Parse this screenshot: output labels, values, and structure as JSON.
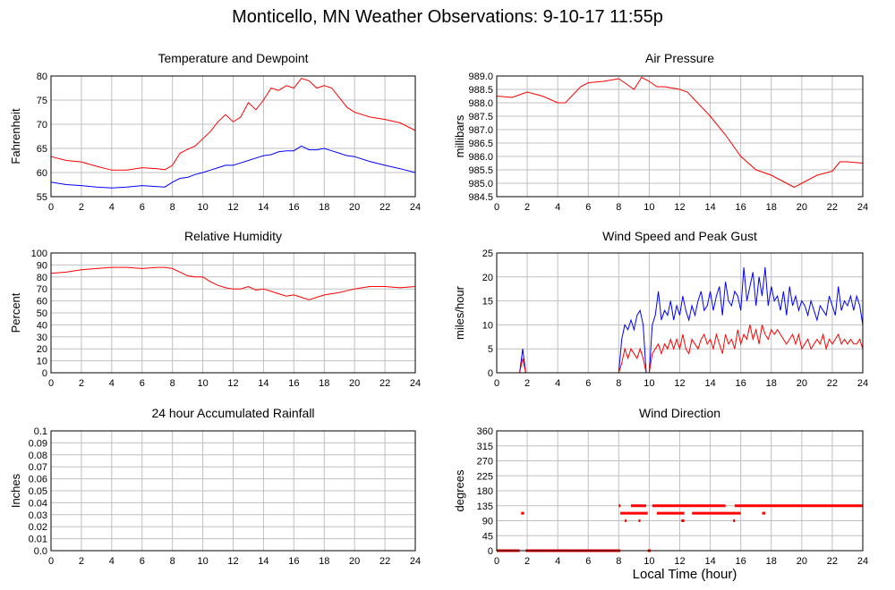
{
  "page": {
    "title": "Monticello, MN Weather Observations: 9-10-17 11:55p",
    "xaxis_label": "Local Time (hour)"
  },
  "chart_data": [
    {
      "id": "temp",
      "type": "line",
      "title": "Temperature and Dewpoint",
      "ylabel": "Fahrenheit",
      "xlabel": "",
      "xlim": [
        0,
        24
      ],
      "ylim": [
        55,
        80
      ],
      "xticks": [
        0,
        2,
        4,
        6,
        8,
        10,
        12,
        14,
        16,
        18,
        20,
        22,
        24
      ],
      "yticks": [
        55,
        60,
        65,
        70,
        75,
        80
      ],
      "ytick_labels": [
        "55",
        "60",
        "65",
        "70",
        "75",
        "80"
      ],
      "grid": true,
      "series": [
        {
          "color": "#ff0000",
          "x": [
            0,
            1,
            2,
            3,
            4,
            5,
            6,
            7,
            7.5,
            8,
            8.5,
            9,
            9.5,
            10,
            10.5,
            11,
            11.5,
            12,
            12.5,
            13,
            13.5,
            14,
            14.5,
            15,
            15.5,
            16,
            16.5,
            17,
            17.5,
            18,
            18.5,
            19,
            19.5,
            20,
            20.5,
            21,
            22,
            23,
            24
          ],
          "y": [
            63.3,
            62.5,
            62.2,
            61.3,
            60.5,
            60.5,
            61.0,
            60.8,
            60.6,
            61.5,
            64.0,
            64.8,
            65.5,
            67.0,
            68.5,
            70.5,
            72.0,
            70.5,
            71.5,
            74.5,
            73.0,
            75.0,
            77.5,
            77.0,
            78.0,
            77.5,
            79.5,
            79.0,
            77.5,
            78.0,
            77.5,
            75.5,
            73.5,
            72.5,
            72.0,
            71.5,
            71.0,
            70.3,
            68.7
          ]
        },
        {
          "color": "#0000ff",
          "x": [
            0,
            1,
            2,
            3,
            4,
            5,
            6,
            7,
            7.5,
            8,
            8.5,
            9,
            9.5,
            10,
            10.5,
            11,
            11.5,
            12,
            12.5,
            13,
            13.5,
            14,
            14.5,
            15,
            15.5,
            16,
            16.5,
            17,
            17.5,
            18,
            18.5,
            19,
            19.5,
            20,
            21,
            22,
            23,
            24
          ],
          "y": [
            58.0,
            57.5,
            57.3,
            57.0,
            56.8,
            57.0,
            57.3,
            57.1,
            57.0,
            58.0,
            58.8,
            59.0,
            59.6,
            60.0,
            60.5,
            61.0,
            61.5,
            61.5,
            62.0,
            62.5,
            63.0,
            63.5,
            63.7,
            64.3,
            64.5,
            64.5,
            65.5,
            64.7,
            64.7,
            65.0,
            64.5,
            64.0,
            63.5,
            63.3,
            62.3,
            61.5,
            60.8,
            60.0
          ]
        }
      ]
    },
    {
      "id": "pressure",
      "type": "line",
      "title": "Air Pressure",
      "ylabel": "millibars",
      "xlabel": "",
      "xlim": [
        0,
        24
      ],
      "ylim": [
        984.5,
        989.0
      ],
      "xticks": [
        0,
        2,
        4,
        6,
        8,
        10,
        12,
        14,
        16,
        18,
        20,
        22,
        24
      ],
      "yticks": [
        984.5,
        985.0,
        985.5,
        986.0,
        986.5,
        987.0,
        987.5,
        988.0,
        988.5,
        989.0
      ],
      "ytick_labels": [
        "984.5",
        "985.0",
        "985.5",
        "986.0",
        "986.5",
        "987.0",
        "987.5",
        "988.0",
        "988.5",
        "989.0"
      ],
      "grid": true,
      "series": [
        {
          "color": "#ff0000",
          "x": [
            0,
            1,
            1.5,
            2,
            3,
            4,
            4.5,
            5,
            5.5,
            6,
            7,
            8,
            8.5,
            9,
            9.5,
            10,
            10.5,
            11,
            12,
            12.5,
            13,
            14,
            15,
            16,
            17,
            18,
            19,
            19.5,
            20,
            21,
            22,
            22.5,
            23,
            24
          ],
          "y": [
            988.25,
            988.2,
            988.3,
            988.4,
            988.25,
            988.0,
            988.0,
            988.3,
            988.6,
            988.75,
            988.8,
            988.9,
            988.7,
            988.5,
            988.95,
            988.8,
            988.6,
            988.6,
            988.5,
            988.4,
            988.1,
            987.5,
            986.8,
            986.0,
            985.5,
            985.3,
            985.0,
            984.85,
            985.0,
            985.3,
            985.45,
            985.8,
            985.8,
            985.75
          ]
        }
      ]
    },
    {
      "id": "humidity",
      "type": "line",
      "title": "Relative Humidity",
      "ylabel": "Percent",
      "xlabel": "",
      "xlim": [
        0,
        24
      ],
      "ylim": [
        0,
        100
      ],
      "xticks": [
        0,
        2,
        4,
        6,
        8,
        10,
        12,
        14,
        16,
        18,
        20,
        22,
        24
      ],
      "yticks": [
        0,
        10,
        20,
        30,
        40,
        50,
        60,
        70,
        80,
        90,
        100
      ],
      "ytick_labels": [
        "0",
        "10",
        "20",
        "30",
        "40",
        "50",
        "60",
        "70",
        "80",
        "90",
        "100"
      ],
      "grid": true,
      "series": [
        {
          "color": "#ff0000",
          "x": [
            0,
            1,
            2,
            3,
            4,
            5,
            6,
            7,
            7.5,
            8,
            8.5,
            9,
            9.5,
            10,
            10.5,
            11,
            11.5,
            12,
            12.5,
            13,
            13.5,
            14,
            14.5,
            15,
            15.5,
            16,
            16.5,
            17,
            17.5,
            18,
            19,
            20,
            21,
            22,
            23,
            24
          ],
          "y": [
            83,
            84,
            86,
            87,
            88,
            88,
            87,
            88,
            88,
            87,
            84,
            81,
            80,
            80,
            76,
            73,
            71,
            70,
            70,
            72,
            69,
            70,
            68,
            66,
            64,
            65,
            63,
            61,
            63,
            65,
            67,
            70,
            72,
            72,
            71,
            72
          ]
        }
      ]
    },
    {
      "id": "wind",
      "type": "line",
      "title": "Wind Speed and Peak Gust",
      "ylabel": "miles/hour",
      "xlabel": "",
      "xlim": [
        0,
        24
      ],
      "ylim": [
        0,
        25
      ],
      "xticks": [
        0,
        2,
        4,
        6,
        8,
        10,
        12,
        14,
        16,
        18,
        20,
        22,
        24
      ],
      "yticks": [
        0,
        5,
        10,
        15,
        20,
        25
      ],
      "ytick_labels": [
        "0",
        "5",
        "10",
        "15",
        "20",
        "25"
      ],
      "grid": true,
      "series": [
        {
          "color": "#0000ff",
          "x": [
            0,
            1.5,
            1.7,
            1.9,
            2.1,
            8.0,
            8.2,
            8.4,
            8.6,
            8.8,
            9.0,
            9.2,
            9.4,
            9.6,
            9.8,
            10.0,
            10.2,
            10.4,
            10.6,
            10.8,
            11.0,
            11.2,
            11.4,
            11.6,
            11.8,
            12.0,
            12.2,
            12.4,
            12.6,
            12.8,
            13.0,
            13.2,
            13.4,
            13.6,
            13.8,
            14.0,
            14.2,
            14.4,
            14.6,
            14.8,
            15.0,
            15.2,
            15.4,
            15.6,
            15.8,
            16.0,
            16.2,
            16.4,
            16.6,
            16.8,
            17.0,
            17.2,
            17.4,
            17.6,
            17.8,
            18.0,
            18.2,
            18.4,
            18.6,
            18.8,
            19.0,
            19.2,
            19.4,
            19.6,
            19.8,
            20.0,
            20.2,
            20.4,
            20.6,
            20.8,
            21.0,
            21.2,
            21.4,
            21.6,
            21.8,
            22.0,
            22.2,
            22.4,
            22.6,
            22.8,
            23.0,
            23.2,
            23.4,
            23.6,
            23.8,
            24.0
          ],
          "y": [
            0,
            0,
            5,
            0,
            0,
            0,
            7,
            10,
            9,
            11,
            9,
            12,
            13,
            10,
            0,
            0,
            10,
            12,
            17,
            11,
            13,
            12,
            15,
            11,
            14,
            12,
            16,
            13,
            11,
            14,
            12,
            15,
            17,
            13,
            14,
            17,
            13,
            16,
            18,
            12,
            19,
            15,
            14,
            17,
            16,
            13,
            22,
            15,
            18,
            21,
            14,
            20,
            16,
            22,
            14,
            18,
            15,
            16,
            13,
            17,
            12,
            18,
            14,
            16,
            13,
            15,
            14,
            12,
            15,
            13,
            11,
            14,
            13,
            12,
            16,
            14,
            12,
            18,
            13,
            15,
            14,
            16,
            13,
            16,
            14,
            10
          ]
        },
        {
          "color": "#ff0000",
          "x": [
            0,
            1.5,
            1.7,
            1.9,
            2.1,
            8.0,
            8.2,
            8.4,
            8.6,
            8.8,
            9.0,
            9.2,
            9.4,
            9.6,
            9.8,
            10.0,
            10.2,
            10.4,
            10.6,
            10.8,
            11.0,
            11.2,
            11.4,
            11.6,
            11.8,
            12.0,
            12.2,
            12.4,
            12.6,
            12.8,
            13.0,
            13.2,
            13.4,
            13.6,
            13.8,
            14.0,
            14.2,
            14.4,
            14.6,
            14.8,
            15.0,
            15.2,
            15.4,
            15.6,
            15.8,
            16.0,
            16.2,
            16.4,
            16.6,
            16.8,
            17.0,
            17.2,
            17.4,
            17.6,
            17.8,
            18.0,
            18.2,
            18.4,
            18.6,
            18.8,
            19.0,
            19.2,
            19.4,
            19.6,
            19.8,
            20.0,
            20.2,
            20.4,
            20.6,
            20.8,
            21.0,
            21.2,
            21.4,
            21.6,
            21.8,
            22.0,
            22.2,
            22.4,
            22.6,
            22.8,
            23.0,
            23.2,
            23.4,
            23.6,
            23.8,
            24.0
          ],
          "y": [
            0,
            0,
            3,
            0,
            0,
            0,
            2,
            5,
            3,
            5,
            4,
            3,
            5,
            3,
            0,
            0,
            4,
            5,
            6,
            4,
            6,
            5,
            7,
            5,
            7,
            5,
            8,
            5,
            4,
            7,
            6,
            5,
            7,
            8,
            6,
            7,
            5,
            8,
            6,
            4,
            8,
            6,
            7,
            5,
            9,
            6,
            8,
            7,
            10,
            7,
            9,
            6,
            10,
            8,
            7,
            9,
            8,
            9,
            8,
            7,
            6,
            7,
            8,
            6,
            8,
            5,
            6,
            7,
            5,
            6,
            7,
            6,
            8,
            5,
            7,
            6,
            7,
            8,
            6,
            7,
            6,
            7,
            6,
            6,
            7,
            5
          ]
        }
      ]
    },
    {
      "id": "rain",
      "type": "line",
      "title": "24 hour Accumulated Rainfall",
      "ylabel": "Inches",
      "xlabel": "",
      "xlim": [
        0,
        24
      ],
      "ylim": [
        0,
        0.1
      ],
      "xticks": [
        0,
        2,
        4,
        6,
        8,
        10,
        12,
        14,
        16,
        18,
        20,
        22,
        24
      ],
      "yticks": [
        0,
        0.01,
        0.02,
        0.03,
        0.04,
        0.05,
        0.06,
        0.07,
        0.08,
        0.09,
        0.1
      ],
      "ytick_labels": [
        "0.0",
        "0.01",
        "0.02",
        "0.03",
        "0.04",
        "0.05",
        "0.06",
        "0.07",
        "0.08",
        "0.09",
        "0.1"
      ],
      "grid": true,
      "series": [
        {
          "color": "#ff0000",
          "x": [
            0,
            24
          ],
          "y": [
            0,
            0
          ]
        }
      ]
    },
    {
      "id": "winddir",
      "type": "scatter",
      "title": "Wind Direction",
      "ylabel": "degrees",
      "xlabel": "Local Time (hour)",
      "xlim": [
        0,
        24
      ],
      "ylim": [
        0,
        360
      ],
      "xticks": [
        0,
        2,
        4,
        6,
        8,
        10,
        12,
        14,
        16,
        18,
        20,
        22,
        24
      ],
      "yticks": [
        0,
        45,
        90,
        135,
        180,
        225,
        270,
        315,
        360
      ],
      "ytick_labels": [
        "0",
        "45",
        "90",
        "135",
        "180",
        "225",
        "270",
        "315",
        "360"
      ],
      "grid": true,
      "segments": [
        {
          "x0": 0.0,
          "x1": 1.5,
          "y": 0
        },
        {
          "x0": 1.9,
          "x1": 8.1,
          "y": 0
        },
        {
          "x0": 9.9,
          "x1": 10.1,
          "y": 0
        },
        {
          "x0": 1.6,
          "x1": 1.8,
          "y": 112.5
        },
        {
          "x0": 8.1,
          "x1": 9.9,
          "y": 112.5
        },
        {
          "x0": 10.5,
          "x1": 12.3,
          "y": 112.5
        },
        {
          "x0": 12.8,
          "x1": 16.0,
          "y": 112.5
        },
        {
          "x0": 17.4,
          "x1": 17.6,
          "y": 112.5
        },
        {
          "x0": 8.4,
          "x1": 8.5,
          "y": 90
        },
        {
          "x0": 9.3,
          "x1": 9.4,
          "y": 90
        },
        {
          "x0": 12.1,
          "x1": 12.3,
          "y": 90
        },
        {
          "x0": 15.5,
          "x1": 15.6,
          "y": 90
        },
        {
          "x0": 8.0,
          "x1": 8.1,
          "y": 135
        },
        {
          "x0": 8.8,
          "x1": 9.8,
          "y": 135
        },
        {
          "x0": 10.2,
          "x1": 15.0,
          "y": 135
        },
        {
          "x0": 15.6,
          "x1": 24.0,
          "y": 135
        }
      ],
      "series": [
        {
          "color": "#ff0000",
          "x": [],
          "y": []
        }
      ]
    }
  ]
}
